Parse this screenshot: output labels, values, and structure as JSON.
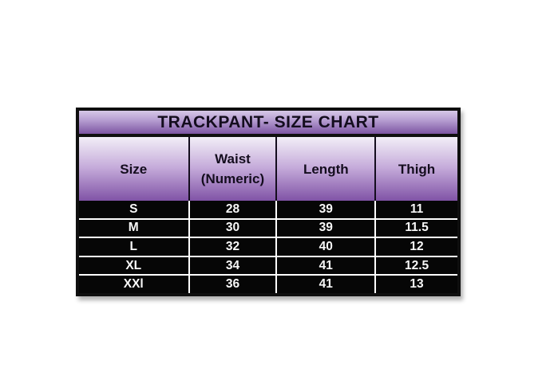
{
  "colors": {
    "page_background": "#ffffff",
    "frame_border": "#0f0f0f",
    "title_gradient_top": "#d6c8e7",
    "title_gradient_bottom": "#7c55a2",
    "header_gradient_top": "#f2eef7",
    "header_gradient_mid": "#c5abda",
    "header_gradient_bottom": "#8053a6",
    "header_text": "#140d1e",
    "row_background": "#060606",
    "row_text": "#ffffff",
    "separator": "#ffffff"
  },
  "chart_data": {
    "type": "table",
    "title": "TRACKPANT- SIZE CHART",
    "columns": [
      "Size",
      "Waist (Numeric)",
      "Length",
      "Thigh"
    ],
    "rows": [
      [
        "S",
        "28",
        "39",
        "11"
      ],
      [
        "M",
        "30",
        "39",
        "11.5"
      ],
      [
        "L",
        "32",
        "40",
        "12"
      ],
      [
        "XL",
        "34",
        "41",
        "12.5"
      ],
      [
        "XXl",
        "36",
        "41",
        "13"
      ]
    ]
  }
}
